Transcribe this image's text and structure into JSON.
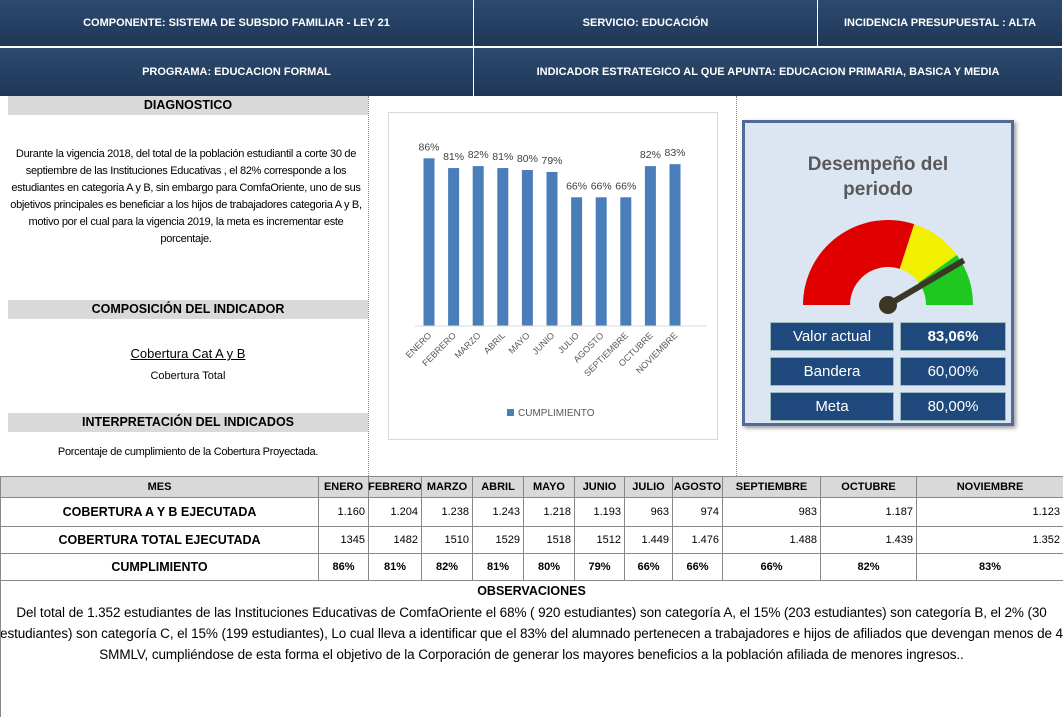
{
  "header": {
    "componente": "COMPONENTE: SISTEMA DE SUBSDIO FAMILIAR - LEY 21",
    "servicio": "SERVICIO: EDUCACIÓN",
    "incidencia": "INCIDENCIA PRESUPUESTAL : ALTA",
    "programa": "PROGRAMA: EDUCACION FORMAL",
    "indicador": "INDICADOR ESTRATEGICO AL QUE APUNTA: EDUCACION PRIMARIA, BASICA Y MEDIA"
  },
  "diagnostico": {
    "title": "DIAGNOSTICO",
    "text": "Durante la vigencia 2018, del total de la  población estudiantil a corte 30 de septiembre de las Instituciones Educativas , el 82% corresponde a los estudiantes en categoria A y B, sin embargo para ComfaOriente, uno de sus objetivos principales es beneficiar a los hijos de trabajadores categoria A y B, motivo por el cual para la vigencia 2019, la meta es incrementar este porcentaje."
  },
  "composicion": {
    "title": "COMPOSICIÓN DEL INDICADOR",
    "numerator": "Cobertura Cat A y B",
    "denominator": "Cobertura Total"
  },
  "interpretacion": {
    "title": "INTERPRETACIÓN DEL INDICADOS",
    "text": "Porcentaje de cumplimiento de la Cobertura Proyectada."
  },
  "chart_data": {
    "type": "bar",
    "categories": [
      "ENERO",
      "FEBRERO",
      "MARZO",
      "ABRIL",
      "MAYO",
      "JUNIO",
      "JULIO",
      "AGOSTO",
      "SEPTIEMBRE",
      "OCTUBRE",
      "NOVIEMBRE"
    ],
    "series": [
      {
        "name": "CUMPLIMIENTO",
        "color": "#4a7ebb",
        "values": [
          86,
          81,
          82,
          81,
          80,
          79,
          66,
          66,
          66,
          82,
          83
        ],
        "value_labels": [
          "86%",
          "81%",
          "82%",
          "81%",
          "80%",
          "79%",
          "66%",
          "66%",
          "66%",
          "82%",
          "83%"
        ]
      }
    ],
    "ylim": [
      0,
      100
    ],
    "legend": "bottom"
  },
  "gauge": {
    "title": "Desempeño del periodo",
    "rows": [
      {
        "label": "Valor actual",
        "value": 83.06,
        "value_label": "83,06%"
      },
      {
        "label": "Bandera",
        "value": 60,
        "value_label": "60,00%"
      },
      {
        "label": "Meta",
        "value": 80,
        "value_label": "80,00%"
      }
    ]
  },
  "table": {
    "header": [
      "MES",
      "ENERO",
      "FEBRERO",
      "MARZO",
      "ABRIL",
      "MAYO",
      "JUNIO",
      "JULIO",
      "AGOSTO",
      "SEPTIEMBRE",
      "OCTUBRE",
      "NOVIEMBRE"
    ],
    "rows": [
      [
        "COBERTURA A Y B EJECUTADA",
        "1.160",
        "1.204",
        "1.238",
        "1.243",
        "1.218",
        "1.193",
        "963",
        "974",
        "983",
        "1.187",
        "1.123"
      ],
      [
        "COBERTURA TOTAL EJECUTADA",
        "1345",
        "1482",
        "1510",
        "1529",
        "1518",
        "1512",
        "1.449",
        "1.476",
        "1.488",
        "1.439",
        "1.352"
      ],
      [
        "CUMPLIMIENTO",
        "86%",
        "81%",
        "82%",
        "81%",
        "80%",
        "79%",
        "66%",
        "66%",
        "66%",
        "82%",
        "83%"
      ]
    ]
  },
  "observaciones": {
    "title": "OBSERVACIONES",
    "text": "Del total de 1.352 estudiantes de las Instituciones Educativas de ComfaOriente el 68%  ( 920 estudiantes) son categoría A, el 15% (203 estudiantes) son categoría B, el 2% (30 estudiantes) son categoría C, el 15% (199 estudiantes), Lo cual lleva a identificar que el 83% del alumnado pertenecen a trabajadores e hijos de afiliados que devengan menos de 4 SMMLV, cumpliéndose de esta forma el objetivo de la Corporación de generar los mayores beneficios a la población afiliada de menores ingresos.."
  }
}
